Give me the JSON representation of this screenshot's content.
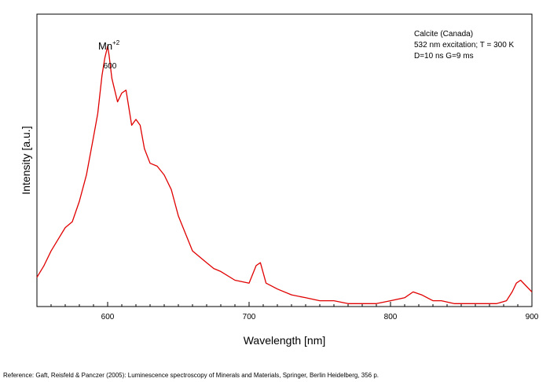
{
  "chart_data": {
    "type": "line",
    "title": "",
    "xlabel": "Wavelength [nm]",
    "ylabel": "Intensity [a.u.]",
    "xlim": [
      550,
      900
    ],
    "ylim": [
      0,
      1
    ],
    "xticks": [
      600,
      700,
      800,
      900
    ],
    "yticks_labeled": false,
    "grid": false,
    "line_color": "#e00000",
    "annotations": {
      "peak_ion": "Mn",
      "peak_ion_charge": "+2",
      "peak_wavelength": "600",
      "info_lines": [
        "Calcite (Canada)",
        "532 nm excitation; T = 300 K",
        "D=10 ns G=9 ms"
      ]
    },
    "series": [
      {
        "x": [
          550,
          555,
          560,
          565,
          570,
          575,
          580,
          585,
          590,
          593,
          596,
          598,
          600,
          601,
          603,
          605,
          607,
          610,
          613,
          615,
          617,
          620,
          623,
          626,
          630,
          635,
          640,
          645,
          650,
          655,
          660,
          665,
          670,
          675,
          680,
          690,
          700,
          705,
          708,
          712,
          720,
          730,
          740,
          750,
          760,
          770,
          780,
          790,
          800,
          810,
          816,
          822,
          830,
          836,
          845,
          860,
          875,
          882,
          886,
          889,
          892,
          896,
          900
        ],
        "y": [
          0.1,
          0.14,
          0.19,
          0.23,
          0.27,
          0.29,
          0.36,
          0.45,
          0.58,
          0.66,
          0.79,
          0.85,
          0.89,
          0.86,
          0.78,
          0.74,
          0.7,
          0.73,
          0.74,
          0.68,
          0.62,
          0.64,
          0.62,
          0.54,
          0.49,
          0.48,
          0.45,
          0.4,
          0.31,
          0.25,
          0.19,
          0.17,
          0.15,
          0.13,
          0.12,
          0.09,
          0.08,
          0.14,
          0.15,
          0.08,
          0.06,
          0.04,
          0.03,
          0.02,
          0.02,
          0.01,
          0.01,
          0.01,
          0.02,
          0.03,
          0.05,
          0.04,
          0.02,
          0.02,
          0.01,
          0.01,
          0.01,
          0.02,
          0.05,
          0.08,
          0.09,
          0.07,
          0.05
        ]
      }
    ]
  },
  "reference": "Reference: Gaft, Reisfeld & Panczer (2005): Luminescence spectroscopy of Minerals and Materials, Springer, Berlin Heidelberg, 356 p."
}
